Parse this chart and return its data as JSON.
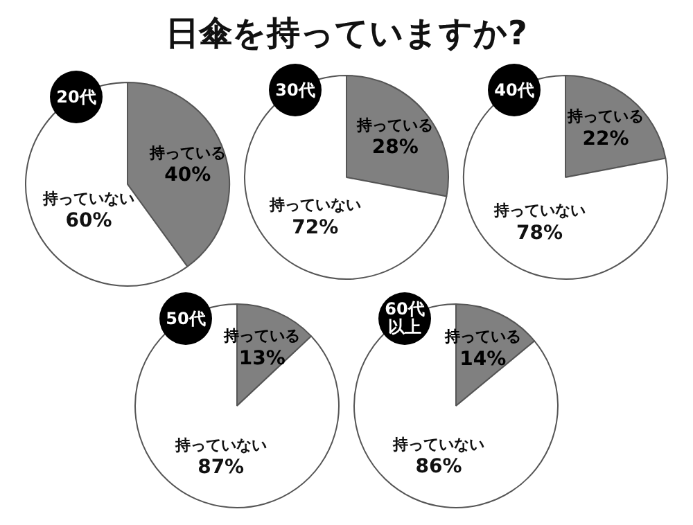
{
  "chart_data": [
    {
      "type": "pie",
      "title": "20代",
      "annotations": [
        "日傘を持っていますか?"
      ],
      "categories": [
        "持っている",
        "持っていない"
      ],
      "values": [
        40,
        60
      ],
      "value_labels": [
        "40%",
        "60%"
      ],
      "colors": [
        "#808080",
        "#ffffff"
      ],
      "legend": false
    },
    {
      "type": "pie",
      "title": "30代",
      "categories": [
        "持っている",
        "持っていない"
      ],
      "values": [
        28,
        72
      ],
      "value_labels": [
        "28%",
        "72%"
      ],
      "colors": [
        "#808080",
        "#ffffff"
      ],
      "legend": false
    },
    {
      "type": "pie",
      "title": "40代",
      "categories": [
        "持っている",
        "持っていない"
      ],
      "values": [
        22,
        78
      ],
      "value_labels": [
        "22%",
        "78%"
      ],
      "colors": [
        "#808080",
        "#ffffff"
      ],
      "legend": false
    },
    {
      "type": "pie",
      "title": "50代",
      "categories": [
        "持っている",
        "持っていない"
      ],
      "values": [
        13,
        87
      ],
      "value_labels": [
        "13%",
        "87%"
      ],
      "colors": [
        "#808080",
        "#ffffff"
      ],
      "legend": false
    },
    {
      "type": "pie",
      "title": "60代以上",
      "categories": [
        "持っている",
        "持っていない"
      ],
      "values": [
        14,
        86
      ],
      "value_labels": [
        "14%",
        "86%"
      ],
      "colors": [
        "#808080",
        "#ffffff"
      ],
      "legend": false
    }
  ]
}
